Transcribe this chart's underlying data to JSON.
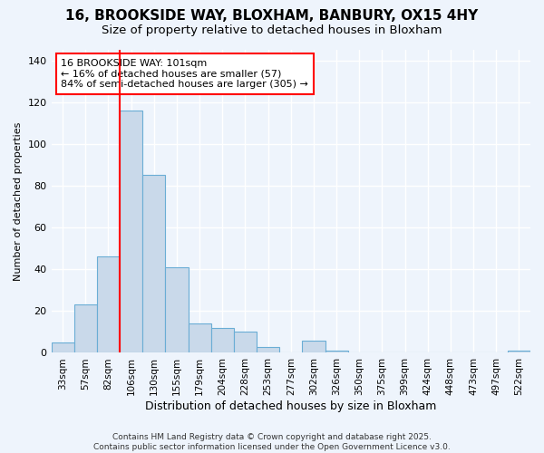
{
  "title": "16, BROOKSIDE WAY, BLOXHAM, BANBURY, OX15 4HY",
  "subtitle": "Size of property relative to detached houses in Bloxham",
  "xlabel": "Distribution of detached houses by size in Bloxham",
  "ylabel": "Number of detached properties",
  "bar_labels": [
    "33sqm",
    "57sqm",
    "82sqm",
    "106sqm",
    "130sqm",
    "155sqm",
    "179sqm",
    "204sqm",
    "228sqm",
    "253sqm",
    "277sqm",
    "302sqm",
    "326sqm",
    "350sqm",
    "375sqm",
    "399sqm",
    "424sqm",
    "448sqm",
    "473sqm",
    "497sqm",
    "522sqm"
  ],
  "bar_values": [
    5,
    23,
    46,
    116,
    85,
    41,
    14,
    12,
    10,
    3,
    0,
    6,
    1,
    0,
    0,
    0,
    0,
    0,
    0,
    0,
    1
  ],
  "bar_color": "#c9d9ea",
  "bar_edgecolor": "#6aadd5",
  "vline_x_index": 3,
  "vline_color": "red",
  "annotation_text": "16 BROOKSIDE WAY: 101sqm\n← 16% of detached houses are smaller (57)\n84% of semi-detached houses are larger (305) →",
  "annotation_box_color": "white",
  "annotation_box_edgecolor": "red",
  "ylim": [
    0,
    145
  ],
  "yticks": [
    0,
    20,
    40,
    60,
    80,
    100,
    120,
    140
  ],
  "footer": "Contains HM Land Registry data © Crown copyright and database right 2025.\nContains public sector information licensed under the Open Government Licence v3.0.",
  "bg_color": "#eef4fc",
  "grid_color": "white",
  "title_fontsize": 11,
  "subtitle_fontsize": 9.5,
  "ylabel_fontsize": 8,
  "xlabel_fontsize": 9
}
